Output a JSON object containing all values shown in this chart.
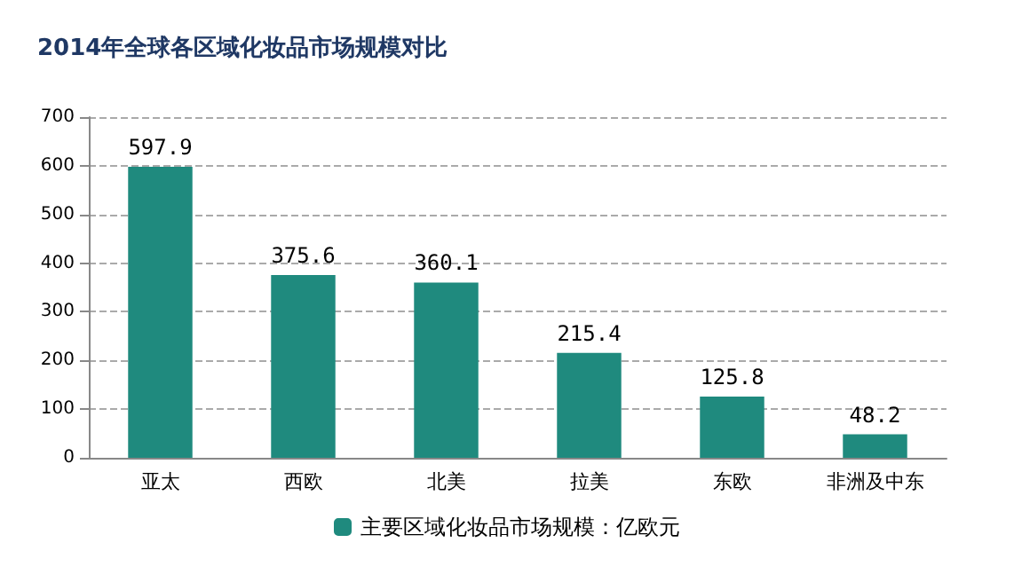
{
  "chart_data": {
    "type": "bar",
    "title": "2014年全球各区域化妆品市场规模对比",
    "categories": [
      "亚太",
      "西欧",
      "北美",
      "拉美",
      "东欧",
      "非洲及中东"
    ],
    "series": [
      {
        "name": "主要区域化妆品市场规模：亿欧元",
        "color": "#1f8a7e",
        "values": [
          597.9,
          375.6,
          360.1,
          215.4,
          125.8,
          48.2
        ]
      }
    ],
    "ylim": [
      0,
      700
    ],
    "yticks": [
      0,
      100,
      200,
      300,
      400,
      500,
      600,
      700
    ],
    "grid": "y",
    "legend": "bottom",
    "data_labels": true
  }
}
